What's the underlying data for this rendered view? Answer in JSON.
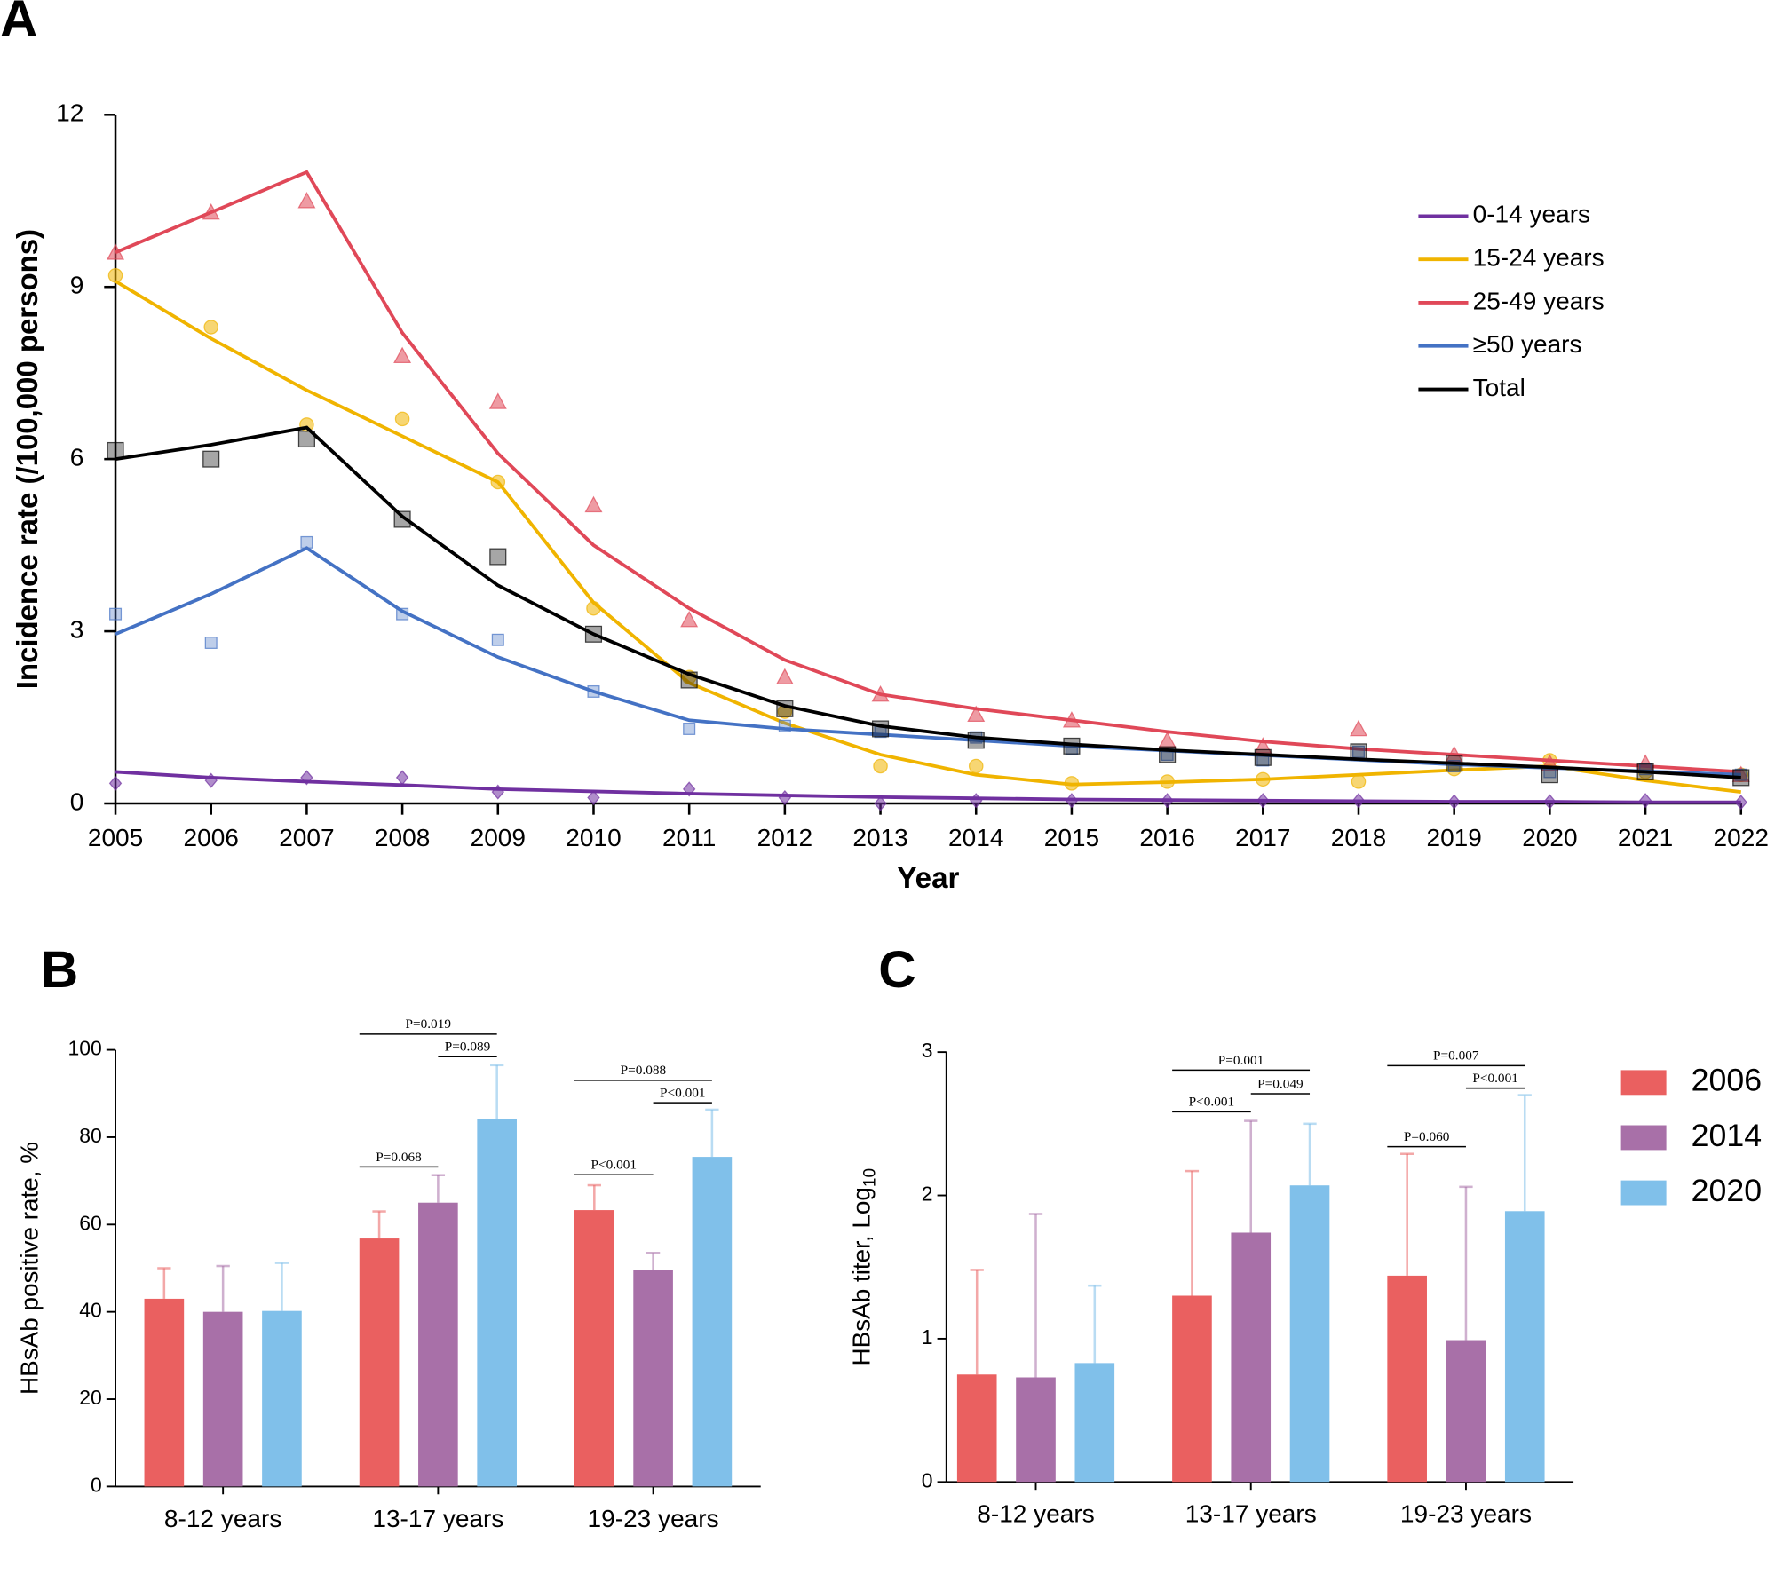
{
  "chart_data": [
    {
      "type": "line",
      "panel": "A",
      "xlabel": "Year",
      "ylabel": "Incidence rate (/100,000 persons)",
      "x": [
        2005,
        2006,
        2007,
        2008,
        2009,
        2010,
        2011,
        2012,
        2013,
        2014,
        2015,
        2016,
        2017,
        2018,
        2019,
        2020,
        2021,
        2022
      ],
      "xlim": [
        2005,
        2022
      ],
      "xticks": [
        2005,
        2006,
        2007,
        2008,
        2009,
        2010,
        2011,
        2012,
        2013,
        2014,
        2015,
        2016,
        2017,
        2018,
        2019,
        2020,
        2021,
        2022
      ],
      "ylim": [
        0,
        12
      ],
      "yticks": [
        0,
        3,
        6,
        9,
        12
      ],
      "legend": "upper right",
      "series": [
        {
          "name": "0-14 years",
          "color": "#7030a0",
          "marker": "diamond",
          "values": [
            0.55,
            0.45,
            0.38,
            0.32,
            0.25,
            0.21,
            0.17,
            0.14,
            0.11,
            0.09,
            0.07,
            0.06,
            0.05,
            0.04,
            0.03,
            0.03,
            0.02,
            0.02
          ],
          "points": [
            0.35,
            0.4,
            0.45,
            0.45,
            0.2,
            0.1,
            0.25,
            0.1,
            0.0,
            0.05,
            0.05,
            0.05,
            0.05,
            0.05,
            0.03,
            0.03,
            0.05,
            0.02
          ]
        },
        {
          "name": "15-24 years",
          "color": "#f0b400",
          "marker": "circle",
          "values": [
            9.1,
            8.1,
            7.2,
            6.4,
            5.6,
            3.5,
            2.1,
            1.4,
            0.85,
            0.5,
            0.33,
            0.37,
            0.42,
            0.5,
            0.58,
            0.65,
            0.4,
            0.2
          ],
          "points": [
            9.2,
            8.3,
            6.6,
            6.7,
            5.6,
            3.4,
            2.2,
            1.6,
            0.65,
            0.65,
            0.35,
            0.38,
            0.42,
            0.38,
            0.6,
            0.75,
            0.55,
            0.5
          ]
        },
        {
          "name": "25-49 years",
          "color": "#e04858",
          "marker": "triangle",
          "values": [
            9.6,
            10.3,
            11.0,
            8.2,
            6.1,
            4.5,
            3.4,
            2.5,
            1.9,
            1.65,
            1.45,
            1.25,
            1.08,
            0.95,
            0.85,
            0.75,
            0.65,
            0.55
          ],
          "points": [
            9.6,
            10.3,
            10.5,
            7.8,
            7.0,
            5.2,
            3.2,
            2.2,
            1.9,
            1.55,
            1.45,
            1.1,
            1.0,
            1.3,
            0.85,
            0.7,
            0.7,
            0.5
          ]
        },
        {
          "name": "≥50 years",
          "color": "#4472c4",
          "marker": "small-square",
          "values": [
            2.95,
            3.65,
            4.45,
            3.35,
            2.55,
            1.95,
            1.45,
            1.3,
            1.2,
            1.1,
            1.0,
            0.92,
            0.84,
            0.76,
            0.68,
            0.62,
            0.56,
            0.5
          ],
          "points": [
            3.3,
            2.8,
            4.55,
            3.3,
            2.85,
            1.95,
            1.3,
            1.35,
            1.25,
            1.15,
            0.95,
            0.85,
            0.75,
            0.9,
            0.65,
            0.55,
            0.6,
            0.5
          ]
        },
        {
          "name": "Total",
          "color": "#000000",
          "marker": "square",
          "values": [
            6.0,
            6.25,
            6.55,
            5.0,
            3.8,
            2.95,
            2.25,
            1.7,
            1.35,
            1.15,
            1.03,
            0.93,
            0.85,
            0.77,
            0.7,
            0.63,
            0.55,
            0.45
          ],
          "points": [
            6.15,
            6.0,
            6.35,
            4.95,
            4.3,
            2.95,
            2.15,
            1.65,
            1.3,
            1.1,
            1.0,
            0.85,
            0.8,
            0.9,
            0.7,
            0.5,
            0.55,
            0.45
          ]
        }
      ]
    },
    {
      "type": "bar",
      "panel": "B",
      "ylabel": "HBsAb positive rate, %",
      "categories": [
        "8-12 years",
        "13-17 years",
        "19-23 years"
      ],
      "ylim": [
        0,
        100
      ],
      "yticks": [
        0,
        20,
        40,
        60,
        80,
        100
      ],
      "series": [
        {
          "color": "#ea6060",
          "values": [
            43,
            56.8,
            63.3
          ],
          "errors": [
            7,
            6.2,
            5.7
          ]
        },
        {
          "color": "#a870a8",
          "values": [
            40,
            65,
            49.6
          ],
          "errors": [
            10.5,
            6.3,
            3.9
          ]
        },
        {
          "color": "#80c0ea",
          "values": [
            40.2,
            84.2,
            75.5
          ],
          "errors": [
            11,
            12.3,
            10.8
          ]
        }
      ],
      "annotations": [
        "P=0.068",
        "P=0.019",
        "P=0.089",
        "P<0.001",
        "P=0.088",
        "P<0.001"
      ]
    },
    {
      "type": "bar",
      "panel": "C",
      "ylabel": "HBsAb titer, Log",
      "ylabel_subscript": "10",
      "categories": [
        "8-12 years",
        "13-17 years",
        "19-23 years"
      ],
      "ylim": [
        0,
        3
      ],
      "yticks": [
        0,
        1,
        2,
        3
      ],
      "legend": "right",
      "series": [
        {
          "name": "2006",
          "color": "#ea6060",
          "values": [
            0.75,
            1.3,
            1.44
          ],
          "errors": [
            0.73,
            0.87,
            0.85
          ]
        },
        {
          "name": "2014",
          "color": "#a870a8",
          "values": [
            0.73,
            1.74,
            0.99
          ],
          "errors": [
            1.14,
            0.78,
            1.07
          ]
        },
        {
          "name": "2020",
          "color": "#80c0ea",
          "values": [
            0.83,
            2.07,
            1.89
          ],
          "errors": [
            0.54,
            0.43,
            0.81
          ]
        }
      ],
      "annotations": [
        "P<0.001",
        "P=0.001",
        "P=0.049",
        "P=0.060",
        "P=0.007",
        "P<0.001"
      ]
    }
  ]
}
